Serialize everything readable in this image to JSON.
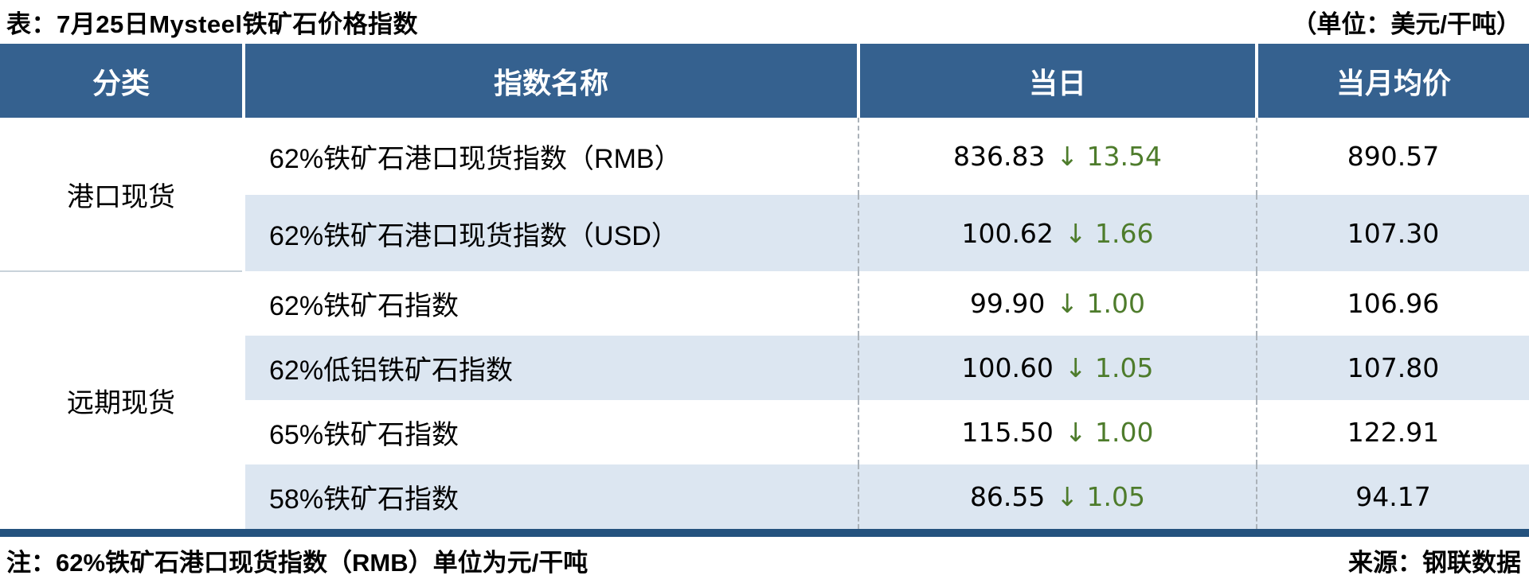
{
  "title": {
    "left": "表：7月25日Mysteel铁矿石价格指数",
    "right": "（单位：美元/干吨）"
  },
  "table": {
    "headers": [
      "分类",
      "指数名称",
      "当日",
      "当月均价"
    ],
    "categories": [
      {
        "label": "港口现货",
        "rowspan": 2
      },
      {
        "label": "远期现货",
        "rowspan": 4
      }
    ],
    "rows": [
      {
        "name": "62%铁矿石港口现货指数（RMB）",
        "today": "836.83",
        "change": "↓ 13.54",
        "month_avg": "890.57"
      },
      {
        "name": "62%铁矿石港口现货指数（USD）",
        "today": "100.62",
        "change": "↓ 1.66",
        "month_avg": "107.30"
      },
      {
        "name": "62%铁矿石指数",
        "today": "99.90",
        "change": "↓ 1.00",
        "month_avg": "106.96"
      },
      {
        "name": "62%低铝铁矿石指数",
        "today": "100.60",
        "change": "↓ 1.05",
        "month_avg": "107.80"
      },
      {
        "name": "65%铁矿石指数",
        "today": "115.50",
        "change": "↓ 1.00",
        "month_avg": "122.91"
      },
      {
        "name": "58%铁矿石指数",
        "today": "86.55",
        "change": "↓ 1.05",
        "month_avg": "94.17"
      }
    ]
  },
  "footer": {
    "note": "注：62%铁矿石港口现货指数（RMB）单位为元/干吨",
    "source": "来源：钢联数据"
  },
  "colors": {
    "header_blue": "#35618F",
    "bottom_bar_blue": "#24527E",
    "stripe_blue": "#DCE6F1",
    "change_green": "#4E7C2C",
    "divider_gray": "#C9D2DA",
    "dashed_gray": "#ABB2B9"
  }
}
